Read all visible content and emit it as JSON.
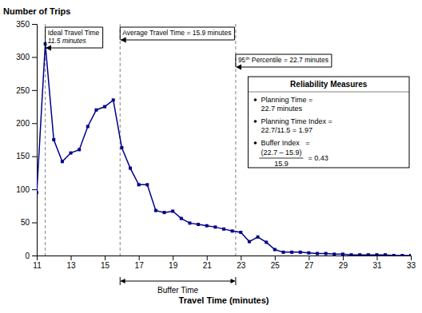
{
  "chart_data": {
    "type": "line",
    "x": [
      11,
      11.5,
      12,
      12.5,
      13,
      13.5,
      14,
      14.5,
      15,
      15.5,
      16,
      16.5,
      17,
      17.5,
      18,
      18.5,
      19,
      19.5,
      20,
      20.5,
      21,
      21.5,
      22,
      22.5,
      23,
      23.5,
      24,
      24.5,
      25,
      25.5,
      26,
      26.5,
      27,
      27.5,
      28,
      28.5,
      29,
      29.5,
      30,
      30.5,
      31,
      31.5,
      32,
      32.5,
      33
    ],
    "values": [
      95,
      320,
      175,
      142,
      155,
      160,
      195,
      220,
      225,
      235,
      163,
      132,
      107,
      107,
      68,
      65,
      67,
      56,
      49,
      47,
      45,
      43,
      40,
      37,
      35,
      21,
      28,
      20,
      9,
      5,
      5,
      5,
      4,
      3,
      3,
      2,
      2,
      1,
      1,
      1,
      1,
      1,
      0,
      0,
      0
    ],
    "color": "#00008B",
    "marker": "square",
    "xlabel": "Travel Time (minutes)",
    "ylabel": "Number of Trips",
    "xlim": [
      11,
      33
    ],
    "ylim": [
      0,
      350
    ],
    "xticks": [
      11,
      13,
      15,
      17,
      19,
      21,
      23,
      25,
      27,
      29,
      31,
      33
    ],
    "yticks": [
      0,
      50,
      100,
      150,
      200,
      250,
      300,
      350
    ],
    "grid": false,
    "annotations": [
      {
        "text": "Ideal Travel Time",
        "subtext": "11.5 minutes",
        "x": 11.5
      },
      {
        "text": "Average Travel Time = 15.9 minutes",
        "x": 15.9
      },
      {
        "text": "95th Percentile = 22.7 minutes",
        "x": 22.7
      }
    ],
    "buffer": {
      "label": "Buffer Time",
      "x1": 15.9,
      "x2": 22.7
    },
    "box": {
      "title": "Reliability Measures",
      "items": [
        {
          "label": "Planning Time =",
          "value": "22.7 minutes"
        },
        {
          "label": "Planning Time Index =",
          "value": "22.7/11.5 = 1.97"
        },
        {
          "label": "Buffer Index   =",
          "numerator": "(22.7 – 15.9)",
          "denominator": "15.9",
          "result": "= 0.43"
        }
      ]
    }
  }
}
